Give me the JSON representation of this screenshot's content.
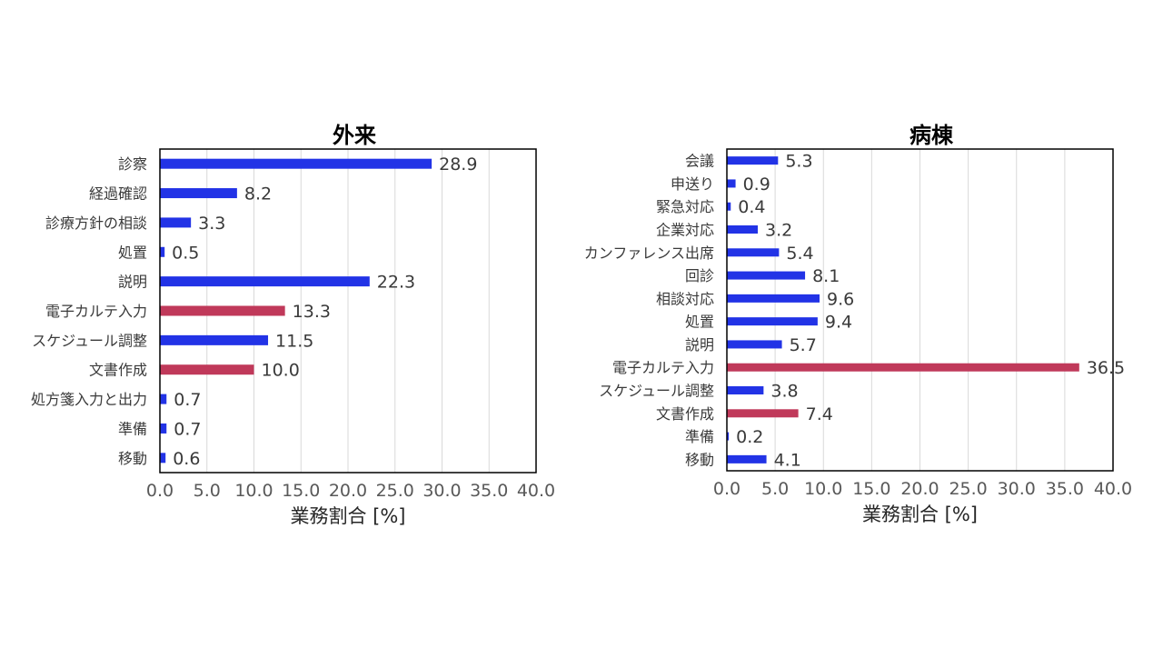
{
  "colors": {
    "default_bar": "#2233e6",
    "highlight_bar": "#c0395a"
  },
  "chart_data": [
    {
      "type": "bar",
      "orientation": "horizontal",
      "title": "外来",
      "xlabel": "業務割合 [%]",
      "ylabel": "",
      "xlim": [
        0,
        40
      ],
      "xticks": [
        "0.0",
        "5.0",
        "10.0",
        "15.0",
        "20.0",
        "25.0",
        "30.0",
        "35.0",
        "40.0"
      ],
      "grid": true,
      "categories": [
        "診察",
        "経過確認",
        "診療方針の相談",
        "処置",
        "説明",
        "電子カルテ入力",
        "スケジュール調整",
        "文書作成",
        "処方箋入力と出力",
        "準備",
        "移動"
      ],
      "values": [
        28.9,
        8.2,
        3.3,
        0.5,
        22.3,
        13.3,
        11.5,
        10.0,
        0.7,
        0.7,
        0.6
      ],
      "value_labels": [
        "28.9",
        "8.2",
        "3.3",
        "0.5",
        "22.3",
        "13.3",
        "11.5",
        "10.0",
        "0.7",
        "0.7",
        "0.6"
      ],
      "highlighted": [
        "電子カルテ入力",
        "文書作成"
      ]
    },
    {
      "type": "bar",
      "orientation": "horizontal",
      "title": "病棟",
      "xlabel": "業務割合 [%]",
      "ylabel": "",
      "xlim": [
        0,
        40
      ],
      "xticks": [
        "0.0",
        "5.0",
        "10.0",
        "15.0",
        "20.0",
        "25.0",
        "30.0",
        "35.0",
        "40.0"
      ],
      "grid": true,
      "categories": [
        "会議",
        "申送り",
        "緊急対応",
        "企業対応",
        "カンファレンス出席",
        "回診",
        "相談対応",
        "処置",
        "説明",
        "電子カルテ入力",
        "スケジュール調整",
        "文書作成",
        "準備",
        "移動"
      ],
      "values": [
        5.3,
        0.9,
        0.4,
        3.2,
        5.4,
        8.1,
        9.6,
        9.4,
        5.7,
        36.5,
        3.8,
        7.4,
        0.2,
        4.1
      ],
      "value_labels": [
        "5.3",
        "0.9",
        "0.4",
        "3.2",
        "5.4",
        "8.1",
        "9.6",
        "9.4",
        "5.7",
        "36.5",
        "3.8",
        "7.4",
        "0.2",
        "4.1"
      ],
      "highlighted": [
        "電子カルテ入力",
        "文書作成"
      ]
    }
  ]
}
